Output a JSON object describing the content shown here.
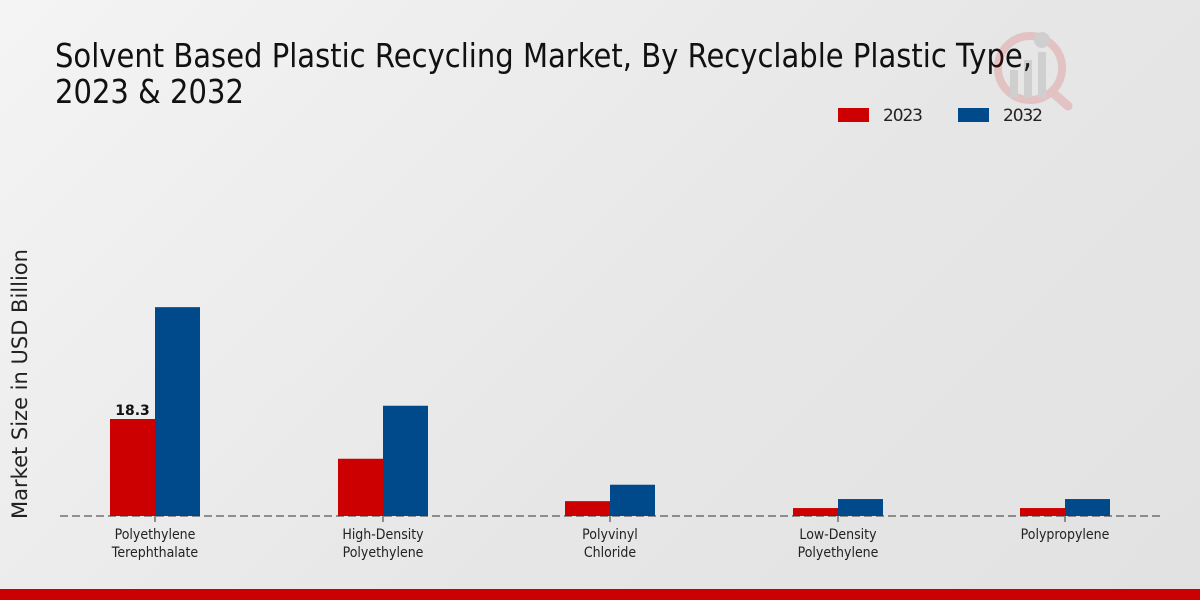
{
  "chart_data": {
    "type": "bar",
    "title": "Solvent Based Plastic Recycling Market, By Recyclable Plastic Type, 2023 & 2032",
    "xlabel": "",
    "ylabel": "Market Size in USD Billion",
    "categories": [
      [
        "Polyethylene",
        "Terephthalate"
      ],
      [
        "High-Density",
        "Polyethylene"
      ],
      [
        "Polyvinyl",
        "Chloride"
      ],
      [
        "Low-Density",
        "Polyethylene"
      ],
      [
        "Polypropylene"
      ]
    ],
    "series": [
      {
        "name": "2023",
        "color": "#cc0000",
        "values": [
          18.3,
          10.8,
          2.8,
          1.5,
          1.5
        ]
      },
      {
        "name": "2032",
        "color": "#004a8c",
        "values": [
          39.4,
          20.8,
          5.9,
          3.2,
          3.2
        ]
      }
    ],
    "data_labels": [
      {
        "series": "2023",
        "category_index": 0,
        "text": "18.3"
      }
    ],
    "legend": "top-right",
    "grid": false
  }
}
